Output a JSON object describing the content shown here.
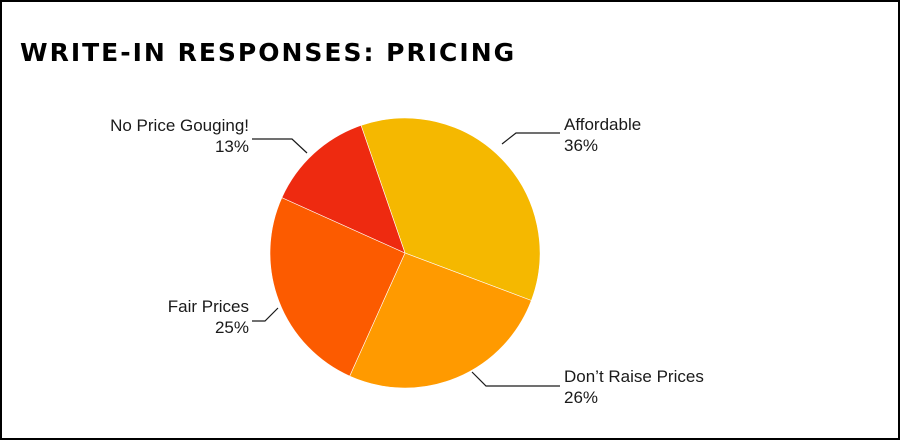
{
  "title": "WRITE-IN RESPONSES: PRICING",
  "chart_data": {
    "type": "pie",
    "title": "WRITE-IN RESPONSES: PRICING",
    "slices": [
      {
        "label": "Affordable",
        "value": 36,
        "value_label": "36%",
        "color": "#F5B800"
      },
      {
        "label": "Don’t Raise Prices",
        "value": 26,
        "value_label": "26%",
        "color": "#FF9A00"
      },
      {
        "label": "Fair Prices",
        "value": 25,
        "value_label": "25%",
        "color": "#FC5B00"
      },
      {
        "label": "No Price Gouging!",
        "value": 13,
        "value_label": "13%",
        "color": "#EE2A10"
      }
    ]
  }
}
